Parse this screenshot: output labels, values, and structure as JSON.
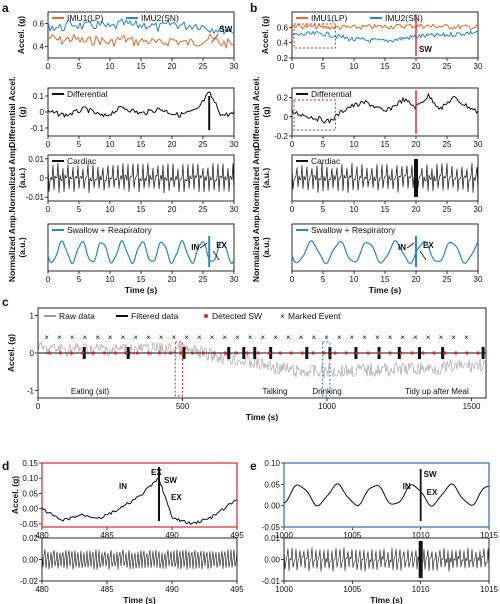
{
  "colors": {
    "imu1": "#e06a2c",
    "imu2": "#2a86c4",
    "black": "#111111",
    "raw": "#9a9a9a",
    "detected": "#e0202a",
    "marked": "#9a5fc0",
    "box_red": "#d42a2a",
    "box_blue": "#2a6fb0"
  },
  "panel_labels": {
    "a": "a",
    "b": "b",
    "c": "c",
    "d": "d",
    "e": "e"
  },
  "chart_data": [
    {
      "id": "a1",
      "type": "line",
      "panel": "a",
      "ylabel": "Accel. (g)",
      "ylim": [
        0.3,
        0.7
      ],
      "yticks": [
        0.4,
        0.6
      ],
      "xlim": [
        0,
        30
      ],
      "xticks": [
        0,
        5,
        10,
        15,
        20,
        25,
        30
      ],
      "legend": [
        "IMU1(LP)",
        "IMU2(SN)"
      ],
      "annotation": "SW",
      "series": [
        {
          "name": "IMU1(LP)",
          "x": [
            0,
            2,
            4,
            6,
            8,
            10,
            12,
            14,
            16,
            18,
            20,
            22,
            24,
            26,
            28,
            30
          ],
          "values": [
            0.48,
            0.45,
            0.47,
            0.44,
            0.46,
            0.43,
            0.47,
            0.44,
            0.45,
            0.42,
            0.46,
            0.43,
            0.44,
            0.47,
            0.43,
            0.42
          ]
        },
        {
          "name": "IMU2(SN)",
          "x": [
            0,
            2,
            4,
            6,
            8,
            10,
            12,
            14,
            16,
            18,
            20,
            22,
            24,
            26,
            28,
            30
          ],
          "values": [
            0.58,
            0.56,
            0.6,
            0.57,
            0.59,
            0.56,
            0.6,
            0.58,
            0.59,
            0.56,
            0.6,
            0.58,
            0.59,
            0.56,
            0.55,
            0.54
          ]
        }
      ]
    },
    {
      "id": "a2",
      "type": "line",
      "panel": "a",
      "ylabel": "Differential Accel. (g)",
      "ylim": [
        -0.15,
        0.15
      ],
      "yticks": [
        -0.1,
        0.0,
        0.1
      ],
      "xlim": [
        0,
        30
      ],
      "xticks": [
        0,
        5,
        10,
        15,
        20,
        25,
        30
      ],
      "legend": [
        "Differential"
      ],
      "series": [
        {
          "name": "Differential",
          "x": [
            0,
            3,
            6,
            9,
            12,
            15,
            18,
            21,
            24,
            26,
            28,
            30
          ],
          "values": [
            0.0,
            -0.02,
            0.02,
            -0.03,
            0.03,
            -0.01,
            0.02,
            -0.02,
            0.01,
            0.12,
            -0.02,
            -0.01
          ]
        }
      ]
    },
    {
      "id": "a3",
      "type": "line",
      "panel": "a",
      "ylabel": "Normalized Amp. (a.u.)",
      "ylim": [
        -0.012,
        0.012
      ],
      "yticks": [
        -0.01,
        0.0,
        0.01
      ],
      "xlim": [
        0,
        30
      ],
      "xticks": [
        0,
        5,
        10,
        15,
        20,
        25,
        30
      ],
      "legend": [
        "Cardiac"
      ],
      "series": [
        {
          "name": "Cardiac",
          "x": [
            0,
            30
          ],
          "values": [
            0.0,
            0.0
          ]
        }
      ]
    },
    {
      "id": "a4",
      "type": "line",
      "panel": "a",
      "ylabel": "Normalized Amp. (a.u.)",
      "xlabel": "Time (s)",
      "xlim": [
        0,
        30
      ],
      "xticks": [
        0,
        5,
        10,
        15,
        20,
        25,
        30
      ],
      "legend": [
        "Swallow + Reapiratory"
      ],
      "annotations": [
        "IN",
        "EX"
      ],
      "series": [
        {
          "name": "Swallow + Reapiratory",
          "x": [
            0,
            30
          ],
          "values": [
            0,
            0
          ]
        }
      ]
    },
    {
      "id": "b1",
      "type": "line",
      "panel": "b",
      "ylabel": "Accel. (g)",
      "ylim": [
        0.2,
        0.8
      ],
      "yticks": [
        0.2,
        0.4,
        0.6
      ],
      "xlim": [
        0,
        30
      ],
      "xticks": [
        0,
        5,
        10,
        15,
        20,
        25,
        30
      ],
      "legend": [
        "IMU1(LP)",
        "IMU2(SN)"
      ],
      "annotation": "SW",
      "series": [
        {
          "name": "IMU1(LP)",
          "x": [
            0,
            5,
            10,
            15,
            20,
            25,
            30
          ],
          "values": [
            0.62,
            0.6,
            0.6,
            0.61,
            0.62,
            0.61,
            0.6
          ]
        },
        {
          "name": "IMU2(SN)",
          "x": [
            0,
            5,
            10,
            15,
            20,
            25,
            30
          ],
          "values": [
            0.5,
            0.52,
            0.44,
            0.42,
            0.48,
            0.5,
            0.54
          ]
        }
      ]
    },
    {
      "id": "b2",
      "type": "line",
      "panel": "b",
      "ylabel": "Differential Accel. (g)",
      "ylim": [
        -0.2,
        0.3
      ],
      "yticks": [
        -0.2,
        0.0,
        0.2
      ],
      "xlim": [
        0,
        30
      ],
      "xticks": [
        0,
        5,
        10,
        15,
        20,
        25,
        30
      ],
      "legend": [
        "Differential"
      ],
      "series": [
        {
          "name": "Differential",
          "x": [
            0,
            3,
            6,
            9,
            12,
            15,
            18,
            20,
            22,
            24,
            26,
            28,
            30
          ],
          "values": [
            0.05,
            0.0,
            -0.05,
            0.1,
            0.15,
            0.05,
            0.18,
            0.1,
            0.22,
            0.08,
            0.2,
            0.12,
            0.05
          ]
        }
      ]
    },
    {
      "id": "b3",
      "type": "line",
      "panel": "b",
      "ylabel": "Normalized Amp. (a.u.)",
      "xlim": [
        0,
        30
      ],
      "xticks": [
        0,
        5,
        10,
        15,
        20,
        25,
        30
      ],
      "legend": [
        "Cardiac"
      ],
      "series": [
        {
          "name": "Cardiac",
          "x": [
            0,
            30
          ],
          "values": [
            0,
            0
          ]
        }
      ]
    },
    {
      "id": "b4",
      "type": "line",
      "panel": "b",
      "ylabel": "Normalized Amp. (a.u.)",
      "xlabel": "Time (s)",
      "xlim": [
        0,
        30
      ],
      "xticks": [
        0,
        5,
        10,
        15,
        20,
        25,
        30
      ],
      "legend": [
        "Swallow + Respiratory"
      ],
      "annotations": [
        "IN",
        "EX"
      ],
      "series": [
        {
          "name": "Swallow + Respiratory",
          "x": [
            0,
            30
          ],
          "values": [
            0,
            0
          ]
        }
      ]
    },
    {
      "id": "c",
      "type": "line",
      "panel": "c",
      "ylabel": "Accel. (g)",
      "xlabel": "Time (s)",
      "ylim": [
        -1.2,
        1.2
      ],
      "yticks": [
        -1,
        0,
        1
      ],
      "xlim": [
        0,
        1550
      ],
      "xticks": [
        0,
        500,
        1000,
        1500
      ],
      "legend": [
        "Raw data",
        "Filtered data",
        "Detected SW",
        "Marked Event"
      ],
      "activities": [
        "Eating (sit)",
        "Talking",
        "Drinking",
        "Tidy up after Meal"
      ],
      "series": [
        {
          "name": "Raw data",
          "x": [
            0,
            500,
            900,
            1400,
            1550
          ],
          "values": [
            0.1,
            0.1,
            -0.5,
            -0.4,
            -0.3
          ]
        },
        {
          "name": "Filtered data",
          "x": [
            0,
            1550
          ],
          "values": [
            0,
            0
          ]
        }
      ]
    },
    {
      "id": "d1",
      "type": "line",
      "panel": "d",
      "ylabel": "Accel. (g)",
      "ylim": [
        -0.06,
        0.15
      ],
      "yticks": [
        -0.05,
        0.0,
        0.05,
        0.1,
        0.15
      ],
      "xlim": [
        480,
        495
      ],
      "xticks": [
        480,
        485,
        490,
        495
      ],
      "annotations": [
        "IN",
        "EX",
        "SW",
        "EX"
      ],
      "series": [
        {
          "name": "",
          "x": [
            480,
            481.5,
            483,
            484.5,
            486,
            487.5,
            489,
            490,
            491.5,
            493,
            495
          ],
          "values": [
            0.0,
            -0.04,
            -0.02,
            -0.03,
            0.0,
            0.04,
            0.1,
            -0.03,
            -0.05,
            -0.03,
            0.03
          ]
        }
      ]
    },
    {
      "id": "d2",
      "type": "line",
      "panel": "d",
      "ylabel": "",
      "xlabel": "Time (s)",
      "ylim": [
        -0.02,
        0.02
      ],
      "yticks": [
        -0.02,
        0.0,
        0.02
      ],
      "xlim": [
        480,
        495
      ],
      "xticks": [
        480,
        485,
        490,
        495
      ],
      "series": [
        {
          "name": "",
          "x": [
            480,
            495
          ],
          "values": [
            0,
            0
          ]
        }
      ]
    },
    {
      "id": "e1",
      "type": "line",
      "panel": "e",
      "ylim": [
        -0.05,
        0.1
      ],
      "yticks": [
        -0.05,
        0.0,
        0.05,
        0.1
      ],
      "xlim": [
        1000,
        1015
      ],
      "xticks": [
        1000,
        1005,
        1010,
        1015
      ],
      "annotations": [
        "IN",
        "SW",
        "EX"
      ],
      "series": [
        {
          "name": "",
          "x": [
            1000,
            1015
          ],
          "values": [
            0,
            0
          ]
        }
      ]
    },
    {
      "id": "e2",
      "type": "line",
      "panel": "e",
      "xlabel": "Time (s)",
      "ylim": [
        -0.01,
        0.01
      ],
      "yticks": [
        -0.01,
        0.0,
        0.01
      ],
      "xlim": [
        1000,
        1015
      ],
      "xticks": [
        1000,
        1005,
        1010,
        1015
      ],
      "series": [
        {
          "name": "",
          "x": [
            1000,
            1015
          ],
          "values": [
            0,
            0
          ]
        }
      ]
    }
  ]
}
